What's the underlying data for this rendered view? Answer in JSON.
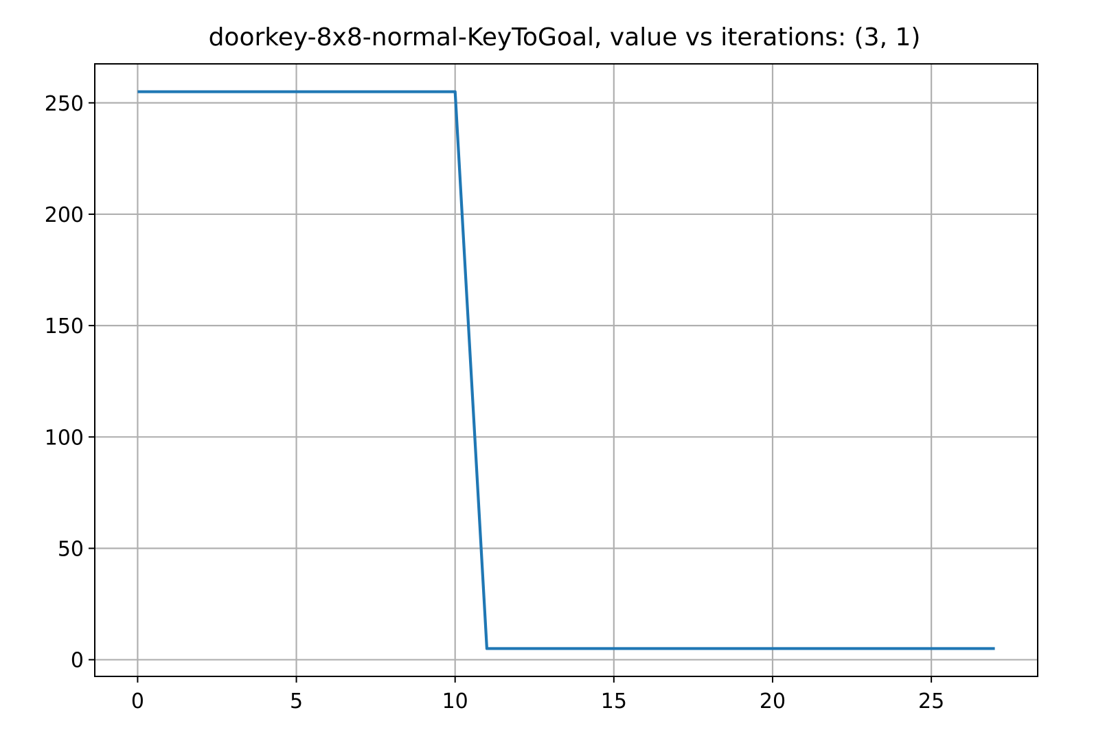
{
  "chart_data": {
    "type": "line",
    "title": "doorkey-8x8-normal-KeyToGoal, value vs iterations: (3, 1)",
    "xlabel": "",
    "ylabel": "",
    "xlim": [
      -1.35,
      28.35
    ],
    "ylim": [
      -7.5,
      267.5
    ],
    "xticks": [
      0,
      5,
      10,
      15,
      20,
      25
    ],
    "yticks": [
      0,
      50,
      100,
      150,
      200,
      250
    ],
    "grid": true,
    "legend": "none",
    "series": [
      {
        "color": "#1f77b4",
        "x": [
          0,
          1,
          2,
          3,
          4,
          5,
          6,
          7,
          8,
          9,
          10,
          11,
          12,
          13,
          14,
          15,
          16,
          17,
          18,
          19,
          20,
          21,
          22,
          23,
          24,
          25,
          26,
          27
        ],
        "y": [
          255,
          255,
          255,
          255,
          255,
          255,
          255,
          255,
          255,
          255,
          255,
          5,
          5,
          5,
          5,
          5,
          5,
          5,
          5,
          5,
          5,
          5,
          5,
          5,
          5,
          5,
          5,
          5
        ]
      }
    ]
  }
}
